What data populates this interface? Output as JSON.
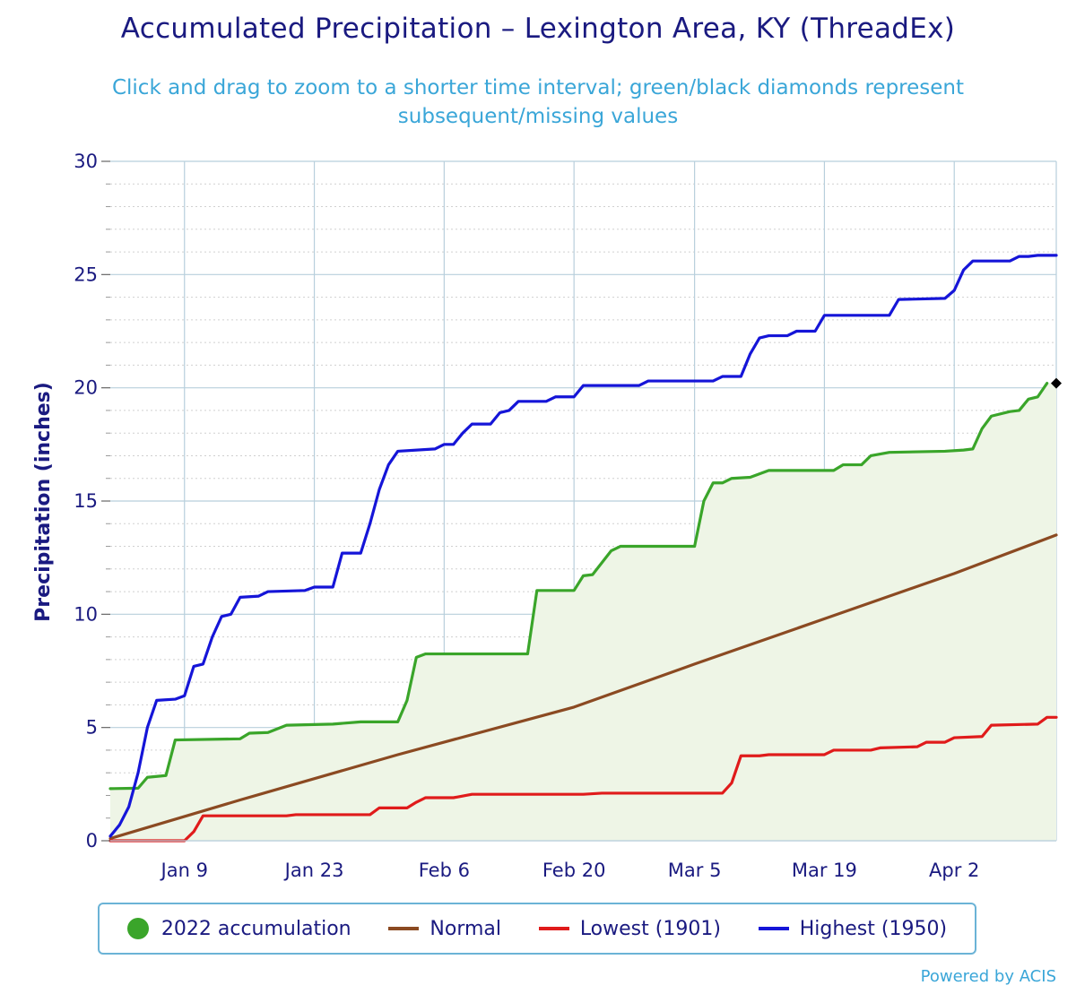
{
  "chart_data": {
    "type": "line",
    "title": "Accumulated Precipitation – Lexington Area, KY (ThreadEx)",
    "subtitle": "Click and drag to zoom to a shorter time interval; green/black diamonds represent subsequent/missing values",
    "ylabel": "Precipitation (inches)",
    "xlabel": "",
    "ylim": [
      0,
      30
    ],
    "xlim": [
      "2022-01-01",
      "2022-04-13"
    ],
    "yticks": [
      0,
      5,
      10,
      15,
      20,
      25,
      30
    ],
    "xticks": [
      {
        "date": "2022-01-09",
        "label": "Jan 9"
      },
      {
        "date": "2022-01-23",
        "label": "Jan 23"
      },
      {
        "date": "2022-02-06",
        "label": "Feb 6"
      },
      {
        "date": "2022-02-20",
        "label": "Feb 20"
      },
      {
        "date": "2022-03-05",
        "label": "Mar 5"
      },
      {
        "date": "2022-03-19",
        "label": "Mar 19"
      },
      {
        "date": "2022-04-02",
        "label": "Apr 2"
      }
    ],
    "grid": true,
    "legend": "bottom",
    "series": [
      {
        "name": "2022 accumulation",
        "color": "#3aa52a",
        "fill": "#eef5e6",
        "marker": "circle",
        "points": [
          [
            "2022-01-01",
            2.3
          ],
          [
            "2022-01-04",
            2.32
          ],
          [
            "2022-01-05",
            2.8
          ],
          [
            "2022-01-07",
            2.88
          ],
          [
            "2022-01-08",
            4.45
          ],
          [
            "2022-01-15",
            4.5
          ],
          [
            "2022-01-16",
            4.75
          ],
          [
            "2022-01-18",
            4.78
          ],
          [
            "2022-01-20",
            5.1
          ],
          [
            "2022-01-25",
            5.15
          ],
          [
            "2022-01-28",
            5.25
          ],
          [
            "2022-02-01",
            5.25
          ],
          [
            "2022-02-02",
            6.2
          ],
          [
            "2022-02-03",
            8.1
          ],
          [
            "2022-02-04",
            8.25
          ],
          [
            "2022-02-15",
            8.25
          ],
          [
            "2022-02-16",
            11.05
          ],
          [
            "2022-02-20",
            11.05
          ],
          [
            "2022-02-21",
            11.7
          ],
          [
            "2022-02-22",
            11.75
          ],
          [
            "2022-02-24",
            12.8
          ],
          [
            "2022-02-25",
            13.0
          ],
          [
            "2022-03-05",
            13.0
          ],
          [
            "2022-03-06",
            15.0
          ],
          [
            "2022-03-07",
            15.8
          ],
          [
            "2022-03-08",
            15.8
          ],
          [
            "2022-03-09",
            16.0
          ],
          [
            "2022-03-11",
            16.05
          ],
          [
            "2022-03-13",
            16.35
          ],
          [
            "2022-03-20",
            16.35
          ],
          [
            "2022-03-21",
            16.6
          ],
          [
            "2022-03-23",
            16.6
          ],
          [
            "2022-03-24",
            17.0
          ],
          [
            "2022-03-26",
            17.15
          ],
          [
            "2022-04-01",
            17.2
          ],
          [
            "2022-04-03",
            17.25
          ],
          [
            "2022-04-04",
            17.3
          ],
          [
            "2022-04-05",
            18.2
          ],
          [
            "2022-04-06",
            18.75
          ],
          [
            "2022-04-08",
            18.95
          ],
          [
            "2022-04-09",
            19.0
          ],
          [
            "2022-04-10",
            19.5
          ],
          [
            "2022-04-11",
            19.6
          ],
          [
            "2022-04-12",
            20.2
          ]
        ]
      },
      {
        "name": "Normal",
        "color": "#8b4a22",
        "points": [
          [
            "2022-01-01",
            0.1
          ],
          [
            "2022-01-15",
            1.8
          ],
          [
            "2022-02-01",
            3.8
          ],
          [
            "2022-02-20",
            5.9
          ],
          [
            "2022-03-05",
            7.8
          ],
          [
            "2022-03-19",
            9.8
          ],
          [
            "2022-04-02",
            11.8
          ],
          [
            "2022-04-13",
            13.5
          ]
        ]
      },
      {
        "name": "Lowest (1901)",
        "color": "#e01b1b",
        "points": [
          [
            "2022-01-01",
            0.0
          ],
          [
            "2022-01-09",
            0.0
          ],
          [
            "2022-01-10",
            0.4
          ],
          [
            "2022-01-11",
            1.1
          ],
          [
            "2022-01-20",
            1.1
          ],
          [
            "2022-01-21",
            1.15
          ],
          [
            "2022-01-29",
            1.15
          ],
          [
            "2022-01-30",
            1.45
          ],
          [
            "2022-02-02",
            1.45
          ],
          [
            "2022-02-03",
            1.7
          ],
          [
            "2022-02-04",
            1.9
          ],
          [
            "2022-02-07",
            1.9
          ],
          [
            "2022-02-09",
            2.05
          ],
          [
            "2022-02-21",
            2.05
          ],
          [
            "2022-02-23",
            2.1
          ],
          [
            "2022-03-08",
            2.1
          ],
          [
            "2022-03-09",
            2.55
          ],
          [
            "2022-03-10",
            3.75
          ],
          [
            "2022-03-12",
            3.75
          ],
          [
            "2022-03-13",
            3.8
          ],
          [
            "2022-03-19",
            3.8
          ],
          [
            "2022-03-20",
            4.0
          ],
          [
            "2022-03-24",
            4.0
          ],
          [
            "2022-03-25",
            4.1
          ],
          [
            "2022-03-29",
            4.15
          ],
          [
            "2022-03-30",
            4.35
          ],
          [
            "2022-04-01",
            4.35
          ],
          [
            "2022-04-02",
            4.55
          ],
          [
            "2022-04-05",
            4.6
          ],
          [
            "2022-04-06",
            5.1
          ],
          [
            "2022-04-11",
            5.15
          ],
          [
            "2022-04-12",
            5.45
          ],
          [
            "2022-04-13",
            5.45
          ]
        ]
      },
      {
        "name": "Highest (1950)",
        "color": "#1515d8",
        "points": [
          [
            "2022-01-01",
            0.2
          ],
          [
            "2022-01-02",
            0.7
          ],
          [
            "2022-01-03",
            1.5
          ],
          [
            "2022-01-04",
            3.0
          ],
          [
            "2022-01-05",
            5.0
          ],
          [
            "2022-01-06",
            6.2
          ],
          [
            "2022-01-08",
            6.25
          ],
          [
            "2022-01-09",
            6.4
          ],
          [
            "2022-01-10",
            7.7
          ],
          [
            "2022-01-11",
            7.8
          ],
          [
            "2022-01-12",
            9.0
          ],
          [
            "2022-01-13",
            9.9
          ],
          [
            "2022-01-14",
            10.0
          ],
          [
            "2022-01-15",
            10.75
          ],
          [
            "2022-01-17",
            10.8
          ],
          [
            "2022-01-18",
            11.0
          ],
          [
            "2022-01-22",
            11.05
          ],
          [
            "2022-01-23",
            11.2
          ],
          [
            "2022-01-25",
            11.2
          ],
          [
            "2022-01-26",
            12.7
          ],
          [
            "2022-01-28",
            12.7
          ],
          [
            "2022-01-29",
            14.0
          ],
          [
            "2022-01-30",
            15.5
          ],
          [
            "2022-01-31",
            16.6
          ],
          [
            "2022-02-01",
            17.2
          ],
          [
            "2022-02-05",
            17.3
          ],
          [
            "2022-02-06",
            17.5
          ],
          [
            "2022-02-07",
            17.5
          ],
          [
            "2022-02-08",
            18.0
          ],
          [
            "2022-02-09",
            18.4
          ],
          [
            "2022-02-11",
            18.4
          ],
          [
            "2022-02-12",
            18.9
          ],
          [
            "2022-02-13",
            19.0
          ],
          [
            "2022-02-14",
            19.4
          ],
          [
            "2022-02-17",
            19.4
          ],
          [
            "2022-02-18",
            19.6
          ],
          [
            "2022-02-20",
            19.6
          ],
          [
            "2022-02-21",
            20.1
          ],
          [
            "2022-02-27",
            20.1
          ],
          [
            "2022-02-28",
            20.3
          ],
          [
            "2022-03-07",
            20.3
          ],
          [
            "2022-03-08",
            20.5
          ],
          [
            "2022-03-10",
            20.5
          ],
          [
            "2022-03-11",
            21.5
          ],
          [
            "2022-03-12",
            22.2
          ],
          [
            "2022-03-13",
            22.3
          ],
          [
            "2022-03-15",
            22.3
          ],
          [
            "2022-03-16",
            22.5
          ],
          [
            "2022-03-18",
            22.5
          ],
          [
            "2022-03-19",
            23.2
          ],
          [
            "2022-03-26",
            23.2
          ],
          [
            "2022-03-27",
            23.9
          ],
          [
            "2022-04-01",
            23.95
          ],
          [
            "2022-04-02",
            24.3
          ],
          [
            "2022-04-03",
            25.2
          ],
          [
            "2022-04-04",
            25.6
          ],
          [
            "2022-04-08",
            25.6
          ],
          [
            "2022-04-09",
            25.8
          ],
          [
            "2022-04-10",
            25.8
          ],
          [
            "2022-04-11",
            25.85
          ],
          [
            "2022-04-13",
            25.85
          ]
        ]
      }
    ],
    "annotations": [
      {
        "type": "diamond",
        "date": "2022-04-13",
        "value": 20.2,
        "color": "#000000"
      }
    ]
  },
  "credit": "Powered by ACIS"
}
